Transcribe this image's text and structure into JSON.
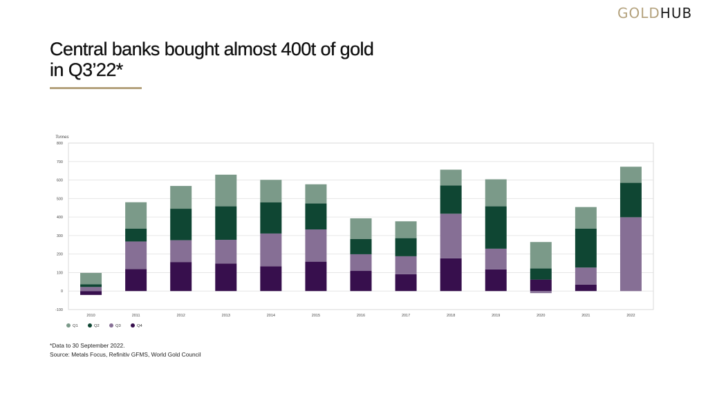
{
  "header": {
    "logo_gold": "GOLD",
    "logo_hub": "HUB",
    "title_line1": "Central banks bought almost 400t of gold",
    "title_line2": "in Q3’22*"
  },
  "colors": {
    "accent_gold": "#b4a27d",
    "Q1": "#7b9a89",
    "Q2": "#0f4633",
    "Q3": "#866f95",
    "Q4": "#370f4d"
  },
  "chart_data": {
    "type": "bar",
    "stacked": true,
    "title": "",
    "xlabel": "",
    "ylabel": "Tonnes",
    "ylim": [
      -100,
      800
    ],
    "yticks": [
      -100,
      0,
      100,
      200,
      300,
      400,
      500,
      600,
      700,
      800
    ],
    "grid": true,
    "legend_position": "bottom-left",
    "categories": [
      "2010",
      "2011",
      "2012",
      "2013",
      "2014",
      "2015",
      "2016",
      "2017",
      "2018",
      "2019",
      "2020",
      "2021",
      "2022"
    ],
    "series": [
      {
        "name": "Q4",
        "values": [
          -21,
          119,
          157,
          149,
          134,
          159,
          109,
          91,
          177,
          117,
          62,
          35,
          0
        ]
      },
      {
        "name": "Q3",
        "values": [
          22,
          149,
          118,
          128,
          177,
          174,
          90,
          97,
          241,
          112,
          -11,
          92,
          399
        ]
      },
      {
        "name": "Q2",
        "values": [
          15,
          69,
          170,
          181,
          169,
          141,
          82,
          98,
          153,
          229,
          60,
          210,
          186
        ]
      },
      {
        "name": "Q1",
        "values": [
          61,
          143,
          123,
          171,
          121,
          103,
          112,
          91,
          85,
          146,
          143,
          117,
          87
        ]
      }
    ],
    "legend": [
      "Q1",
      "Q2",
      "Q3",
      "Q4"
    ]
  },
  "footer": {
    "note": "*Data to 30 September 2022.",
    "source": "Source: Metals Focus, Refinitiv GFMS, World Gold Council"
  }
}
